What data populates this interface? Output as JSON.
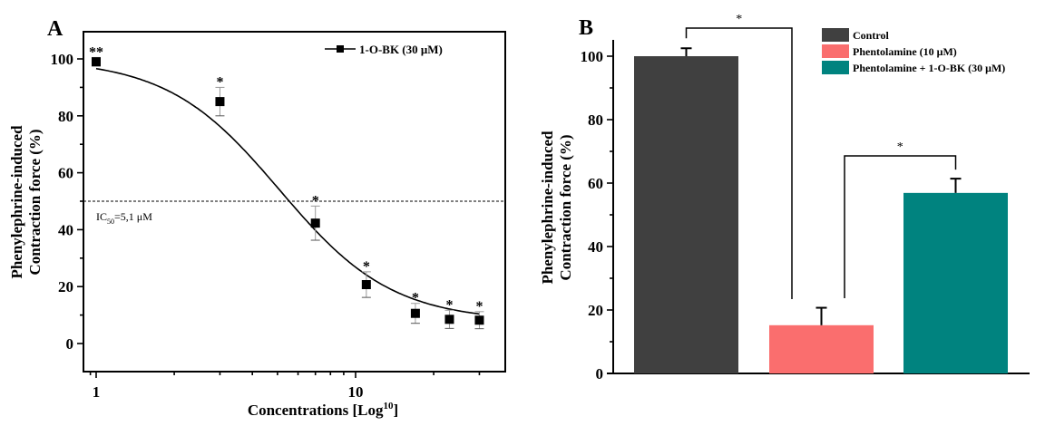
{
  "chart_data": [
    {
      "panel": "A",
      "type": "scatter",
      "title": "",
      "xlabel": "Concentrations [Log",
      "xlabel_sup": "10",
      "xlabel_end": "]",
      "ylabel_line1": "Phenylephrine-induced",
      "ylabel_line2": "Contraction force (%)",
      "xscale": "log",
      "xlim": [
        0.92,
        38
      ],
      "ylim": [
        -10,
        110
      ],
      "xticks": [
        1,
        10
      ],
      "xtick_labels": [
        "1",
        "10"
      ],
      "yticks": [
        0,
        20,
        40,
        60,
        80,
        100
      ],
      "ytick_labels": [
        "0",
        "20",
        "40",
        "60",
        "80",
        "100"
      ],
      "legend": {
        "label": "1-O-BK  (30 μM)",
        "position": "top-right"
      },
      "series": [
        {
          "name": "1-O-BK (30 μM)",
          "x": [
            1,
            3,
            7,
            11,
            17,
            23,
            30
          ],
          "y": [
            99,
            85,
            42.3,
            20.7,
            10.6,
            8.5,
            8.2
          ],
          "err": [
            1.5,
            5,
            6,
            4.5,
            3.5,
            3.2,
            3
          ],
          "annotations": [
            "**",
            "*",
            "*",
            "*",
            "*",
            "*",
            "*"
          ]
        }
      ],
      "fit": {
        "type": "logistic",
        "top": 100,
        "bottom": 7.8,
        "ic50": 5.1,
        "hill": 2.0
      },
      "reference_line": {
        "y": 50,
        "style": "dashed"
      },
      "ic50_label": {
        "prefix": "IC",
        "sub": "50",
        "suffix": "=5,1 μM"
      }
    },
    {
      "panel": "B",
      "type": "bar",
      "title": "",
      "xlabel": "",
      "ylabel_line1": "Phenylephrine-induced",
      "ylabel_line2": "Contraction force (%)",
      "ylim": [
        0,
        105
      ],
      "yticks": [
        0,
        20,
        40,
        60,
        80,
        100
      ],
      "ytick_labels": [
        "0",
        "20",
        "40",
        "60",
        "80",
        "100"
      ],
      "categories": [
        "Control",
        "Phentolamine (10 μM)",
        "Phentolamine  + 1-O-BK (30 μM)"
      ],
      "values": [
        100,
        15.2,
        56.9
      ],
      "errors": [
        2.5,
        5.5,
        4.5
      ],
      "colors": [
        "#404040",
        "#FA6E6E",
        "#00837F"
      ],
      "legend": {
        "position": "top-right",
        "entries": [
          "Control",
          "Phentolamine (10 μM)",
          "Phentolamine  + 1-O-BK (30 μM)"
        ]
      },
      "significance": [
        {
          "from": 0,
          "to": 1,
          "label": "*"
        },
        {
          "from": 1,
          "to": 2,
          "label": "*"
        }
      ]
    }
  ],
  "panels": {
    "a_label": "A",
    "b_label": "B"
  }
}
